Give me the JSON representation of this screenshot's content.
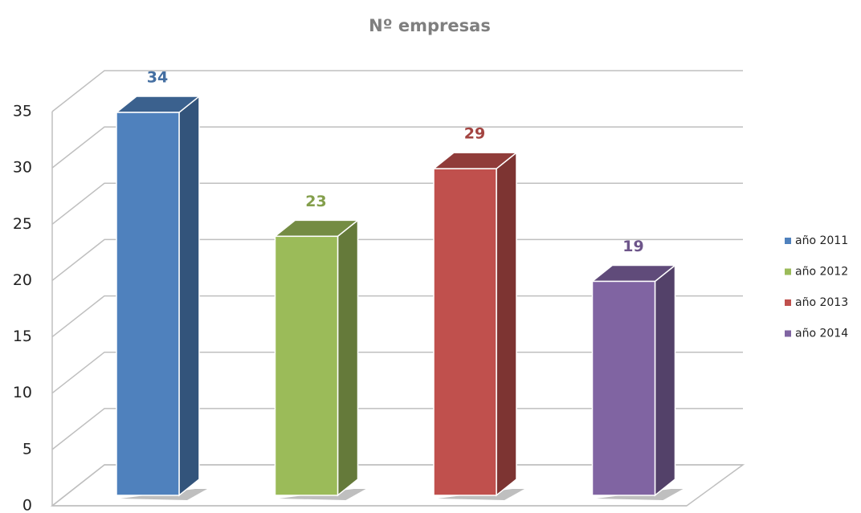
{
  "chart_data": {
    "type": "bar3d",
    "title": "Nº empresas",
    "categories": [
      null
    ],
    "series": [
      {
        "name": "año 2011",
        "color": "#4f81bd",
        "values": [
          34
        ]
      },
      {
        "name": "año 2012",
        "color": "#9bbb59",
        "values": [
          23
        ]
      },
      {
        "name": "año 2013",
        "color": "#c0504d",
        "values": [
          29
        ]
      },
      {
        "name": "año 2014",
        "color": "#8064a2",
        "values": [
          19
        ]
      }
    ],
    "ylim": [
      0,
      35
    ],
    "yticks": [
      0,
      5,
      10,
      15,
      20,
      25,
      30,
      35
    ],
    "grid": true,
    "legend": "right"
  }
}
